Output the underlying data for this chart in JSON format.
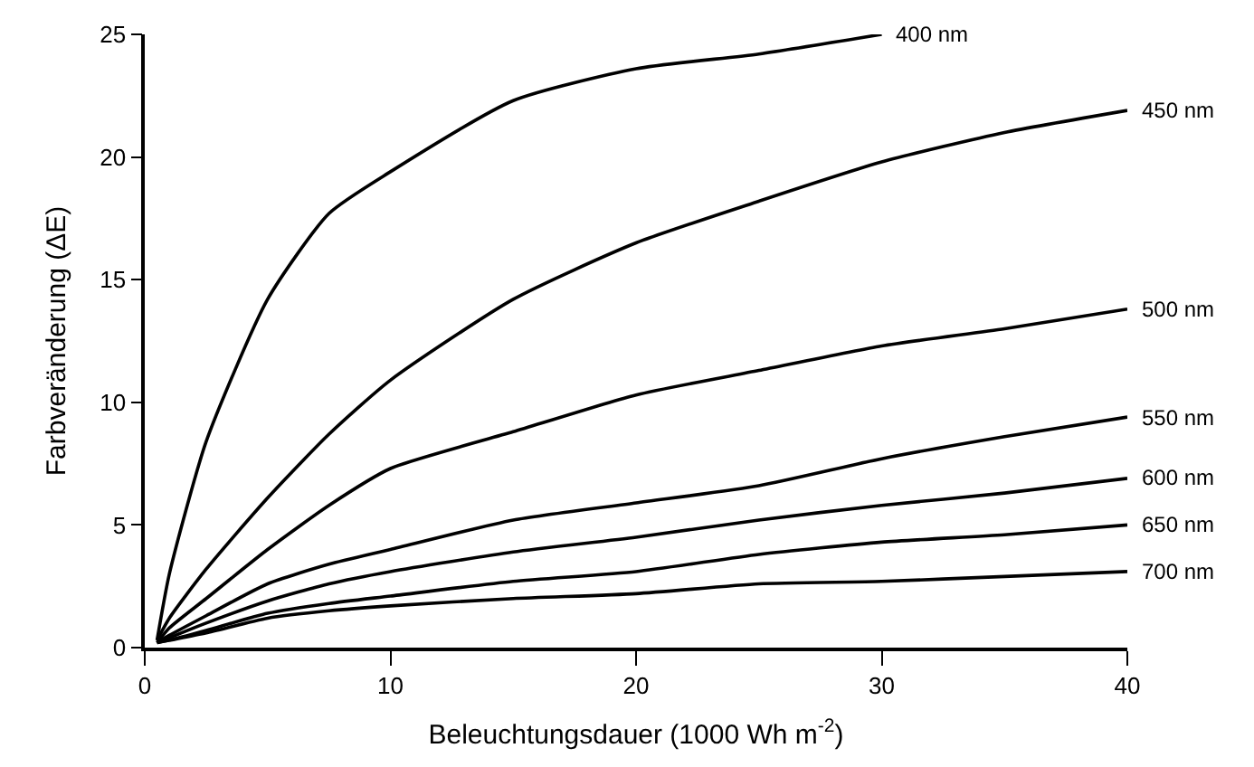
{
  "chart_data": {
    "type": "line",
    "xlabel": "Beleuchtungsdauer (1000 Wh m$^{-2}$)",
    "ylabel": "Farbveränderung (ΔE)",
    "xlim": [
      0,
      40
    ],
    "ylim": [
      0,
      25
    ],
    "xticks": [
      0,
      10,
      20,
      30,
      40
    ],
    "yticks": [
      0,
      5,
      10,
      15,
      20,
      25
    ],
    "legend": false,
    "marker": "none",
    "line_style": "solid",
    "x": [
      0.5,
      1,
      2.5,
      5,
      7.5,
      10,
      15,
      20,
      25,
      30,
      35,
      40
    ],
    "series": [
      {
        "name": "400 nm",
        "color": "#000000",
        "values": [
          0.3,
          3,
          8.4,
          14.2,
          17.7,
          19.4,
          22.3,
          23.6,
          24.2,
          25.0,
          null,
          null
        ]
      },
      {
        "name": "450 nm",
        "color": "#000000",
        "values": [
          0.3,
          1.2,
          3.2,
          6.1,
          8.7,
          10.9,
          14.2,
          16.5,
          18.2,
          19.8,
          21.0,
          21.9
        ]
      },
      {
        "name": "500 nm",
        "color": "#000000",
        "values": [
          0.2,
          0.8,
          2.0,
          4.0,
          5.8,
          7.3,
          8.8,
          10.3,
          11.3,
          12.3,
          13.0,
          13.8
        ]
      },
      {
        "name": "550 nm",
        "color": "#000000",
        "values": [
          0.2,
          0.5,
          1.3,
          2.6,
          3.4,
          4.0,
          5.2,
          5.9,
          6.6,
          7.7,
          8.6,
          9.4
        ]
      },
      {
        "name": "600 nm",
        "color": "#000000",
        "values": [
          0.2,
          0.4,
          1.0,
          1.9,
          2.6,
          3.1,
          3.9,
          4.5,
          5.2,
          5.8,
          6.3,
          6.9
        ]
      },
      {
        "name": "650 nm",
        "color": "#000000",
        "values": [
          0.2,
          0.3,
          0.7,
          1.4,
          1.8,
          2.1,
          2.7,
          3.1,
          3.8,
          4.3,
          4.6,
          5.0
        ]
      },
      {
        "name": "700 nm",
        "color": "#000000",
        "values": [
          0.2,
          0.3,
          0.6,
          1.2,
          1.5,
          1.7,
          2.0,
          2.2,
          2.6,
          2.7,
          2.9,
          3.1
        ]
      }
    ]
  }
}
